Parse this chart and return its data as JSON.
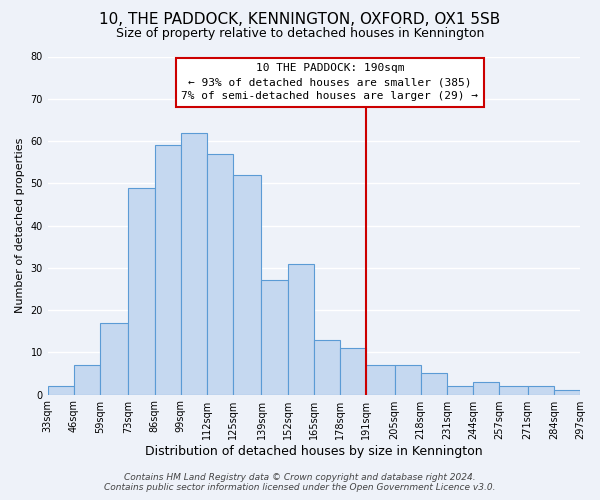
{
  "title": "10, THE PADDOCK, KENNINGTON, OXFORD, OX1 5SB",
  "subtitle": "Size of property relative to detached houses in Kennington",
  "xlabel": "Distribution of detached houses by size in Kennington",
  "ylabel": "Number of detached properties",
  "bar_values": [
    2,
    7,
    17,
    49,
    59,
    62,
    57,
    52,
    27,
    31,
    13,
    11,
    7,
    7,
    5,
    2,
    3,
    2,
    2,
    1
  ],
  "bin_edges": [
    33,
    46,
    59,
    73,
    86,
    99,
    112,
    125,
    139,
    152,
    165,
    178,
    191,
    205,
    218,
    231,
    244,
    257,
    271,
    284,
    297
  ],
  "tick_labels": [
    "33sqm",
    "46sqm",
    "59sqm",
    "73sqm",
    "86sqm",
    "99sqm",
    "112sqm",
    "125sqm",
    "139sqm",
    "152sqm",
    "165sqm",
    "178sqm",
    "191sqm",
    "205sqm",
    "218sqm",
    "231sqm",
    "244sqm",
    "257sqm",
    "271sqm",
    "284sqm",
    "297sqm"
  ],
  "bar_color": "#c5d8f0",
  "bar_edge_color": "#5b9bd5",
  "vline_x": 191,
  "vline_color": "#cc0000",
  "ylim": [
    0,
    80
  ],
  "yticks": [
    0,
    10,
    20,
    30,
    40,
    50,
    60,
    70,
    80
  ],
  "annotation_title": "10 THE PADDOCK: 190sqm",
  "annotation_line1": "← 93% of detached houses are smaller (385)",
  "annotation_line2": "7% of semi-detached houses are larger (29) →",
  "footer_line1": "Contains HM Land Registry data © Crown copyright and database right 2024.",
  "footer_line2": "Contains public sector information licensed under the Open Government Licence v3.0.",
  "background_color": "#eef2f9",
  "grid_color": "#ffffff",
  "title_fontsize": 11,
  "subtitle_fontsize": 9,
  "xlabel_fontsize": 9,
  "ylabel_fontsize": 8,
  "tick_fontsize": 7,
  "annot_fontsize": 8,
  "footer_fontsize": 6.5
}
